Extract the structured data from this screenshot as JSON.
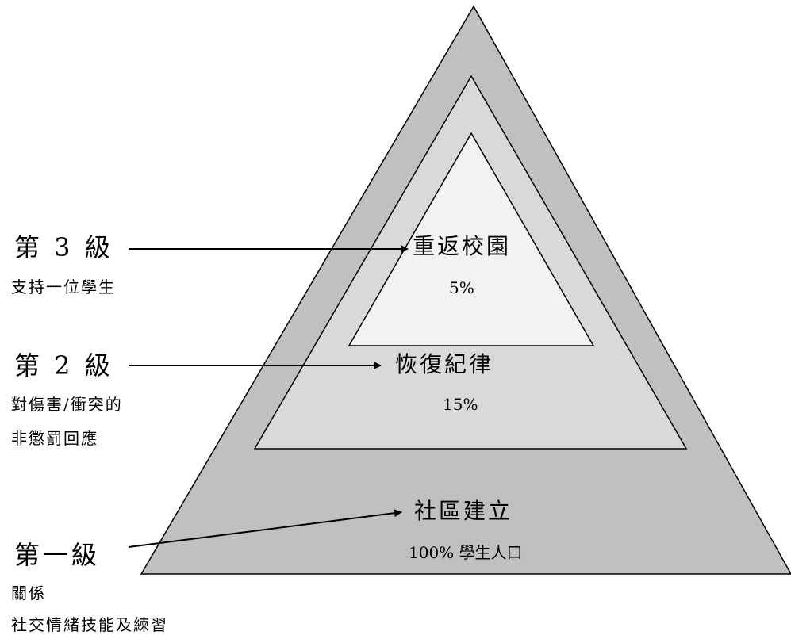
{
  "tiers": [
    {
      "title": "重返校園",
      "percent": "5%"
    },
    {
      "title": "恢復紀律",
      "percent": "15%"
    },
    {
      "title": "社區建立",
      "percent": "100% 學生人口"
    }
  ],
  "levels": [
    {
      "title": "第 3 級",
      "description": [
        "支持一位學生"
      ]
    },
    {
      "title": "第 2 級",
      "description": [
        "對傷害/衝突的",
        "非懲罰回應"
      ]
    },
    {
      "title": "第一級",
      "description": [
        "關係",
        "社交情緒技能及練習"
      ]
    }
  ],
  "colors": {
    "outer_fill": "#c0c0c0",
    "middle_fill": "#d9d9d9",
    "inner_fill": "#f2f2f2",
    "stroke": "#000000"
  }
}
